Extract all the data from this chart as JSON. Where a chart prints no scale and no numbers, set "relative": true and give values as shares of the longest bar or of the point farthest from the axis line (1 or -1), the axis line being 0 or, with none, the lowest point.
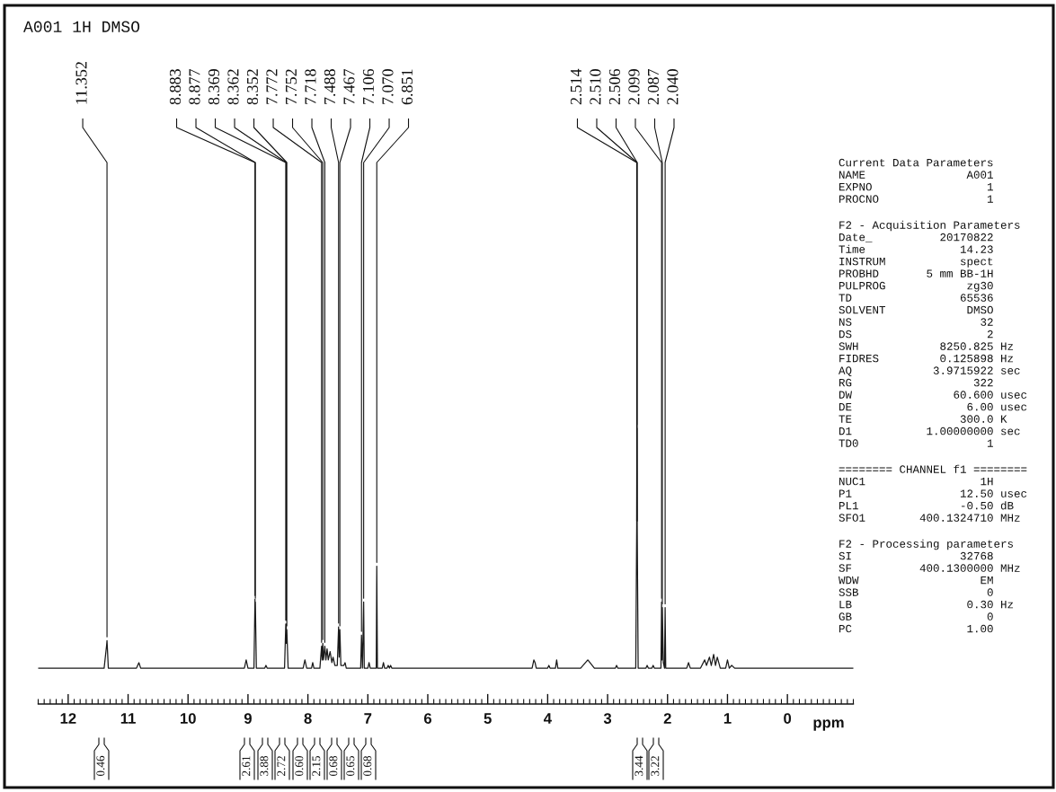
{
  "chart_data": [
    {
      "type": "line",
      "title": "A001 1H DMSO",
      "xlabel": "ppm",
      "relative": true,
      "color": "#1a1a1a",
      "xlim": [
        12.5,
        -1.1
      ],
      "xticks": [
        12,
        11,
        10,
        9,
        8,
        7,
        6,
        5,
        4,
        3,
        2,
        1,
        0
      ],
      "x": [
        12.5,
        11.6,
        11.4,
        11.36,
        11.352,
        11.345,
        11.33,
        10.86,
        10.82,
        10.79,
        9.06,
        9.03,
        9.0,
        8.9,
        8.883,
        8.88,
        8.877,
        8.86,
        8.72,
        8.7,
        8.68,
        8.39,
        8.369,
        8.365,
        8.362,
        8.357,
        8.352,
        8.33,
        8.08,
        8.05,
        8.02,
        7.94,
        7.92,
        7.9,
        7.8,
        7.772,
        7.762,
        7.752,
        7.74,
        7.718,
        7.7,
        7.68,
        7.66,
        7.63,
        7.6,
        7.58,
        7.55,
        7.51,
        7.488,
        7.478,
        7.467,
        7.45,
        7.4,
        7.38,
        7.36,
        7.12,
        7.106,
        7.09,
        7.07,
        7.06,
        7.0,
        6.98,
        6.96,
        6.86,
        6.851,
        6.84,
        6.76,
        6.74,
        6.72,
        6.68,
        6.66,
        6.64,
        6.62,
        6.6,
        4.26,
        4.23,
        4.21,
        4.19,
        4.0,
        3.98,
        3.96,
        3.87,
        3.85,
        3.83,
        3.45,
        3.33,
        3.22,
        2.87,
        2.85,
        2.83,
        2.53,
        2.514,
        2.51,
        2.506,
        2.49,
        2.36,
        2.34,
        2.32,
        2.26,
        2.24,
        2.22,
        2.11,
        2.099,
        2.093,
        2.087,
        2.07,
        2.05,
        2.04,
        2.03,
        1.68,
        1.65,
        1.62,
        1.45,
        1.38,
        1.35,
        1.3,
        1.27,
        1.23,
        1.2,
        1.17,
        1.12,
        1.03,
        1.0,
        0.97,
        0.93,
        0.88,
        -1.1
      ],
      "values": [
        0.13,
        0.13,
        0.13,
        0.21,
        0.23,
        0.2,
        0.13,
        0.13,
        0.15,
        0.13,
        0.13,
        0.16,
        0.13,
        0.13,
        0.38,
        0.29,
        0.37,
        0.13,
        0.13,
        0.14,
        0.13,
        0.13,
        0.29,
        0.22,
        0.29,
        0.22,
        0.27,
        0.13,
        0.13,
        0.16,
        0.13,
        0.13,
        0.15,
        0.13,
        0.13,
        0.21,
        0.16,
        0.22,
        0.16,
        0.21,
        0.16,
        0.2,
        0.16,
        0.19,
        0.15,
        0.17,
        0.14,
        0.14,
        0.28,
        0.17,
        0.27,
        0.14,
        0.14,
        0.15,
        0.13,
        0.13,
        0.25,
        0.13,
        0.37,
        0.13,
        0.13,
        0.15,
        0.13,
        0.13,
        0.5,
        0.13,
        0.13,
        0.15,
        0.13,
        0.13,
        0.14,
        0.13,
        0.14,
        0.13,
        0.13,
        0.16,
        0.15,
        0.13,
        0.13,
        0.14,
        0.13,
        0.13,
        0.16,
        0.13,
        0.13,
        0.16,
        0.13,
        0.13,
        0.14,
        0.13,
        0.13,
        0.65,
        1,
        0.65,
        0.13,
        0.13,
        0.14,
        0.13,
        0.13,
        0.14,
        0.13,
        0.13,
        0.37,
        0.16,
        0.35,
        0.15,
        0.13,
        0.35,
        0.13,
        0.13,
        0.15,
        0.13,
        0.13,
        0.16,
        0.14,
        0.17,
        0.14,
        0.18,
        0.14,
        0.17,
        0.13,
        0.13,
        0.16,
        0.13,
        0.14,
        0.13,
        0.13
      ],
      "annotations": [
        {
          "text": "11.352",
          "x": 11.352,
          "y": 0.23
        },
        {
          "text": "8.883",
          "x": 8.883,
          "y": 0.38
        },
        {
          "text": "8.877",
          "x": 8.877,
          "y": 0.37
        },
        {
          "text": "8.369",
          "x": 8.369,
          "y": 0.29
        },
        {
          "text": "8.362",
          "x": 8.362,
          "y": 0.29
        },
        {
          "text": "8.352",
          "x": 8.352,
          "y": 0.27
        },
        {
          "text": "7.772",
          "x": 7.772,
          "y": 0.21
        },
        {
          "text": "7.752",
          "x": 7.752,
          "y": 0.22
        },
        {
          "text": "7.718",
          "x": 7.718,
          "y": 0.21
        },
        {
          "text": "7.488",
          "x": 7.488,
          "y": 0.28
        },
        {
          "text": "7.467",
          "x": 7.467,
          "y": 0.27
        },
        {
          "text": "7.106",
          "x": 7.106,
          "y": 0.25
        },
        {
          "text": "7.070",
          "x": 7.07,
          "y": 0.37
        },
        {
          "text": "6.851",
          "x": 6.851,
          "y": 0.5
        },
        {
          "text": "2.514",
          "x": 2.514,
          "y": 0.65
        },
        {
          "text": "2.510",
          "x": 2.51,
          "y": 1
        },
        {
          "text": "2.506",
          "x": 2.506,
          "y": 0.65
        },
        {
          "text": "2.099",
          "x": 2.099,
          "y": 0.37
        },
        {
          "text": "2.087",
          "x": 2.087,
          "y": 0.35
        },
        {
          "text": "2.040",
          "x": 2.04,
          "y": 0.35
        },
        "0.46",
        "2.61",
        "3.88",
        "2.72",
        "0.60",
        "2.15",
        "0.68",
        "0.65",
        "0.68",
        "3.44",
        "3.22"
      ]
    },
    {
      "type": "other",
      "title": "Current Data Parameters",
      "annotations": [
        "NAME               A001",
        "EXPNO                 1",
        "PROCNO                1"
      ]
    },
    {
      "type": "other",
      "title": "F2 - Acquisition Parameters",
      "annotations": [
        "Date_          20170822",
        "Time              14.23",
        "INSTRUM           spect",
        "PROBHD       5 mm BB-1H",
        "PULPROG            zg30",
        "TD                65536",
        "SOLVENT            DMSO",
        "NS                   32",
        "DS                    2",
        "SWH            8250.825 Hz",
        "FIDRES         0.125898 Hz",
        "AQ            3.9715922 sec",
        "RG                  322",
        "DW               60.600 usec",
        "DE                 6.00 usec",
        "TE                300.0 K",
        "D1           1.00000000 sec",
        "TD0                   1"
      ]
    },
    {
      "type": "other",
      "title": "======== CHANNEL f1 ========",
      "annotations": [
        "NUC1                 1H",
        "P1                12.50 usec",
        "PL1               -0.50 dB",
        "SFO1        400.1324710 MHz"
      ]
    },
    {
      "type": "other",
      "title": "F2 - Processing parameters",
      "annotations": [
        "SI                32768",
        "SF          400.1300000 MHz",
        "WDW                  EM",
        "SSB                   0",
        "LB                 0.30 Hz",
        "GB                    0",
        "PC                 1.00"
      ]
    }
  ]
}
